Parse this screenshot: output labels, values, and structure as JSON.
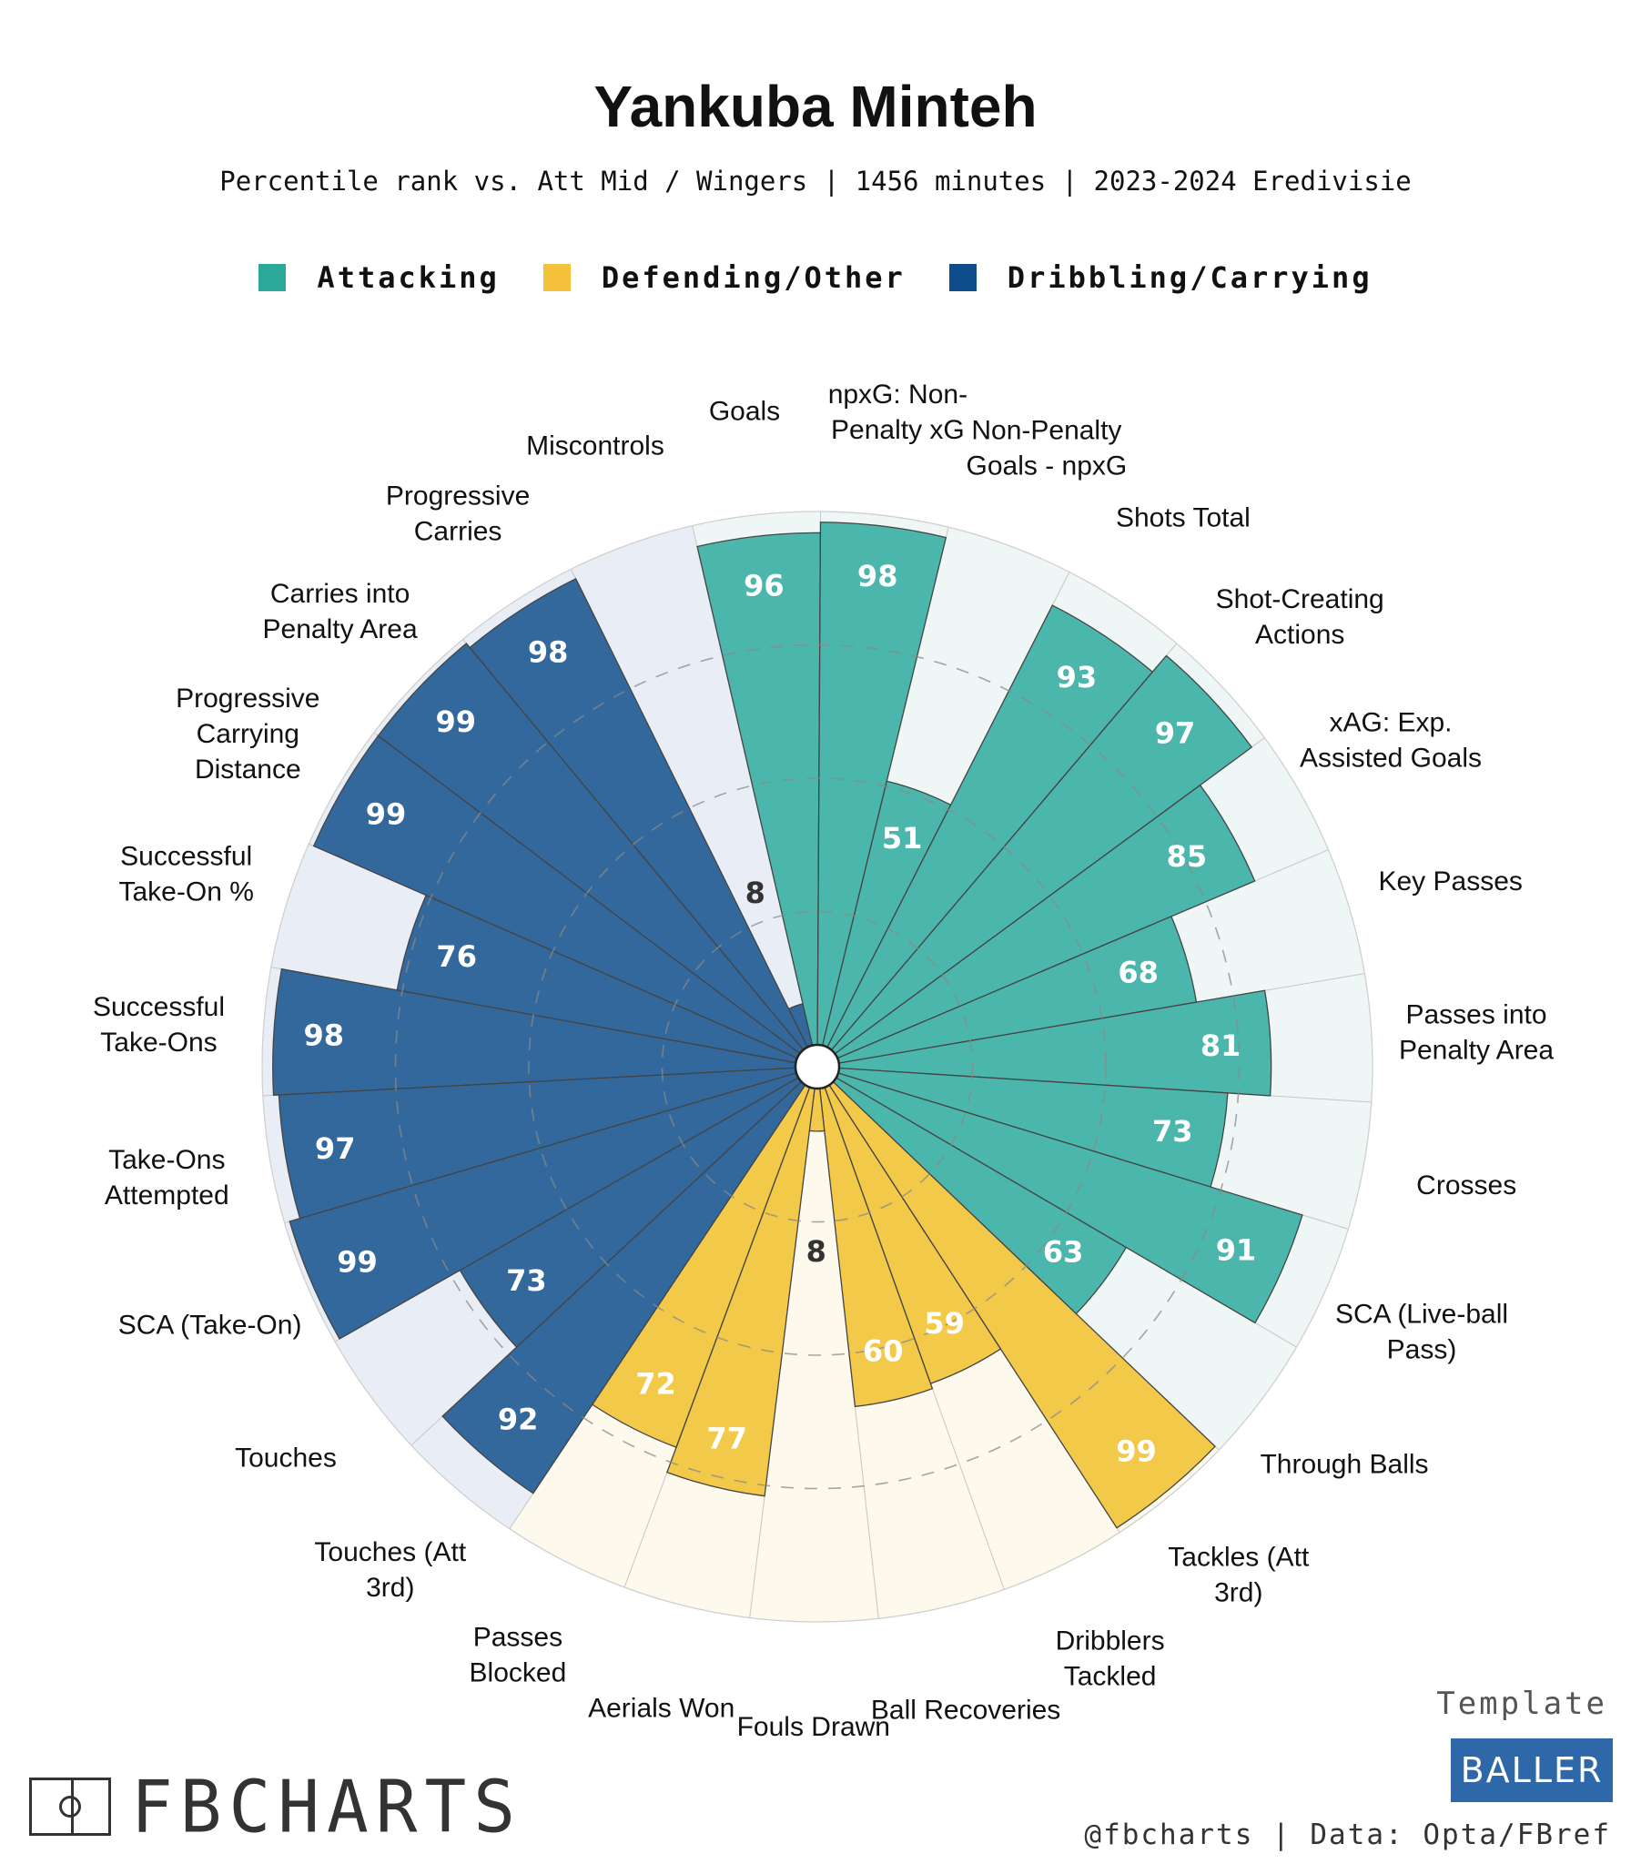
{
  "header": {
    "title": "Yankuba Minteh",
    "subtitle": "Percentile rank vs. Att Mid / Wingers | 1456 minutes | 2023-2024 Eredivisie"
  },
  "legend": [
    {
      "label": "Attacking",
      "color": "#2aa89a"
    },
    {
      "label": "Defending/Other",
      "color": "#f3c23a"
    },
    {
      "label": "Dribbling/Carrying",
      "color": "#0f4c8c"
    }
  ],
  "branding": {
    "logo_text": "FBCHARTS",
    "template_label": "Template",
    "template_name": "BALLER",
    "credit": "@fbcharts | Data: Opta/FBref"
  },
  "chart_data": {
    "type": "polar-bar",
    "title": "Yankuba Minteh",
    "subtitle": "Percentile rank vs. Att Mid / Wingers | 1456 minutes | 2023-2024 Eredivisie",
    "rlim": [
      0,
      100
    ],
    "grid": true,
    "legend_position": "top",
    "colors": {
      "Attacking": {
        "bar": "#4bb6ab",
        "bg": "#eef7f5"
      },
      "Defending/Other": {
        "bar": "#f3c94a",
        "bg": "#fdf9ec"
      },
      "Dribbling/Carrying": {
        "bar": "#33689c",
        "bg": "#e9eef6"
      }
    },
    "categories": [
      "Passes into\nPenalty Area",
      "Crosses",
      "SCA (Live-ball\nPass)",
      "Through Balls",
      "Tackles (Att\n3rd)",
      "Dribblers\nTackled",
      "Ball Recoveries",
      "Fouls Drawn",
      "Aerials Won",
      "Passes\nBlocked",
      "Touches (Att\n3rd)",
      "Touches",
      "SCA (Take-On)",
      "Take-Ons\nAttempted",
      "Successful\nTake-Ons",
      "Successful\nTake-On %",
      "Progressive\nCarrying\nDistance",
      "Carries into\nPenalty Area",
      "Progressive\nCarries",
      "Miscontrols",
      "Goals",
      "npxG: Non-\nPenalty xG",
      "Non-Penalty\nGoals - npxG",
      "Shots Total",
      "Shot-Creating\nActions",
      "xAG: Exp.\nAssisted Goals",
      "Key Passes"
    ],
    "groups": [
      "Attacking",
      "Attacking",
      "Attacking",
      "Attacking",
      "Defending/Other",
      "Defending/Other",
      "Defending/Other",
      "Defending/Other",
      "Defending/Other",
      "Defending/Other",
      "Dribbling/Carrying",
      "Dribbling/Carrying",
      "Dribbling/Carrying",
      "Dribbling/Carrying",
      "Dribbling/Carrying",
      "Dribbling/Carrying",
      "Dribbling/Carrying",
      "Dribbling/Carrying",
      "Dribbling/Carrying",
      "Dribbling/Carrying",
      "Attacking",
      "Attacking",
      "Attacking",
      "Attacking",
      "Attacking",
      "Attacking",
      "Attacking"
    ],
    "values": [
      81,
      73,
      91,
      63,
      99,
      59,
      60,
      8,
      77,
      72,
      92,
      73,
      99,
      97,
      98,
      76,
      99,
      99,
      98,
      8,
      96,
      98,
      51,
      93,
      97,
      85,
      68
    ],
    "value_labels": [
      "81",
      "73",
      "91",
      "63",
      "99",
      "59",
      "60",
      "8",
      "77",
      "72",
      "92",
      "73",
      "99",
      "97",
      "98",
      "76",
      "99",
      "99",
      "98",
      "8",
      "96",
      "98",
      "51",
      "93",
      "97",
      "85",
      "68"
    ]
  }
}
